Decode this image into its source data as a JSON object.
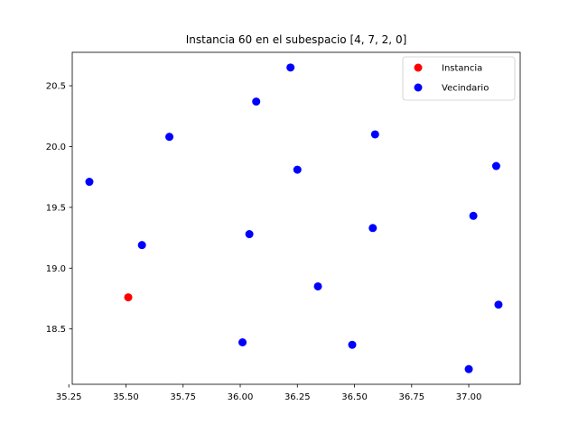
{
  "chart_data": {
    "type": "scatter",
    "title": "Instancia 60 en el subespacio [4, 7, 2, 0]",
    "xlabel": "",
    "ylabel": "",
    "xlim": [
      35.265,
      37.225
    ],
    "ylim": [
      18.045,
      20.775
    ],
    "xticks": [
      35.25,
      35.5,
      35.75,
      36.0,
      36.25,
      36.5,
      36.75,
      37.0
    ],
    "xtick_labels": [
      "35.25",
      "35.50",
      "35.75",
      "36.00",
      "36.25",
      "36.50",
      "36.75",
      "37.00"
    ],
    "yticks": [
      18.5,
      19.0,
      19.5,
      20.0,
      20.5
    ],
    "ytick_labels": [
      "18.5",
      "19.0",
      "19.5",
      "20.0",
      "20.5"
    ],
    "grid": false,
    "legend_position": "upper right",
    "series": [
      {
        "name": "Instancia",
        "color": "#ff0000",
        "points": [
          [
            35.51,
            18.76
          ]
        ]
      },
      {
        "name": "Vecindario",
        "color": "#0000ff",
        "points": [
          [
            35.34,
            19.71
          ],
          [
            35.57,
            19.19
          ],
          [
            35.69,
            20.08
          ],
          [
            36.01,
            18.39
          ],
          [
            36.04,
            19.28
          ],
          [
            36.07,
            20.37
          ],
          [
            36.22,
            20.65
          ],
          [
            36.25,
            19.81
          ],
          [
            36.34,
            18.85
          ],
          [
            36.49,
            18.37
          ],
          [
            36.58,
            19.33
          ],
          [
            36.59,
            20.1
          ],
          [
            37.0,
            18.17
          ],
          [
            37.02,
            19.43
          ],
          [
            37.12,
            19.84
          ],
          [
            37.13,
            18.7
          ]
        ]
      }
    ]
  }
}
